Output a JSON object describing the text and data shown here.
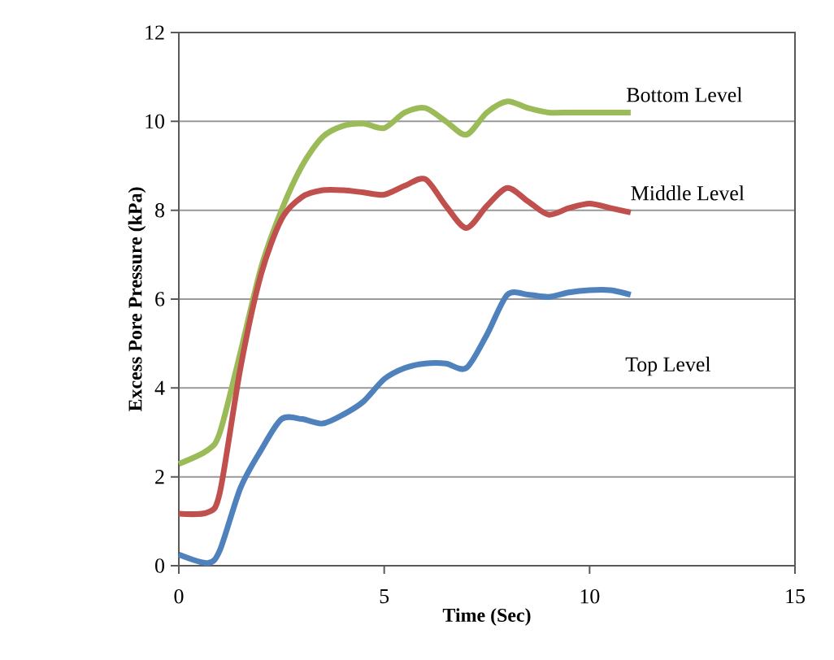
{
  "chart_data": {
    "type": "line",
    "xlabel": "Time (Sec)",
    "ylabel": "Excess Pore Pressure (kPa)",
    "xlim": [
      0,
      15
    ],
    "ylim": [
      0,
      12
    ],
    "xticks": [
      0,
      5,
      10,
      15
    ],
    "yticks": [
      0,
      2,
      4,
      6,
      8,
      10,
      12
    ],
    "grid": "y",
    "legend": false,
    "marker": "none",
    "line_style": "solid",
    "x": [
      0,
      0.7,
      1,
      1.5,
      2,
      2.5,
      3,
      3.5,
      4,
      4.5,
      5,
      5.5,
      6,
      6.5,
      7,
      7.5,
      8,
      8.5,
      9,
      9.5,
      10,
      10.5,
      11
    ],
    "series": [
      {
        "name": "Bottom Level",
        "color": "#9bbb59",
        "values": [
          2.29,
          2.6,
          3.0,
          4.8,
          6.7,
          8.0,
          9.0,
          9.65,
          9.9,
          9.95,
          9.85,
          10.2,
          10.3,
          10.0,
          9.7,
          10.2,
          10.45,
          10.3,
          10.2,
          10.2,
          10.2,
          10.2,
          10.2
        ]
      },
      {
        "name": "Middle Level",
        "color": "#c0504d",
        "values": [
          1.17,
          1.2,
          1.65,
          4.45,
          6.55,
          7.8,
          8.3,
          8.45,
          8.45,
          8.4,
          8.35,
          8.55,
          8.7,
          8.1,
          7.6,
          8.1,
          8.5,
          8.2,
          7.9,
          8.05,
          8.15,
          8.05,
          7.95
        ]
      },
      {
        "name": "Top Level",
        "color": "#4f81bd",
        "values": [
          0.25,
          0.06,
          0.35,
          1.75,
          2.6,
          3.3,
          3.3,
          3.2,
          3.4,
          3.7,
          4.2,
          4.45,
          4.55,
          4.55,
          4.45,
          5.2,
          6.1,
          6.1,
          6.05,
          6.15,
          6.2,
          6.2,
          6.1
        ]
      }
    ]
  }
}
